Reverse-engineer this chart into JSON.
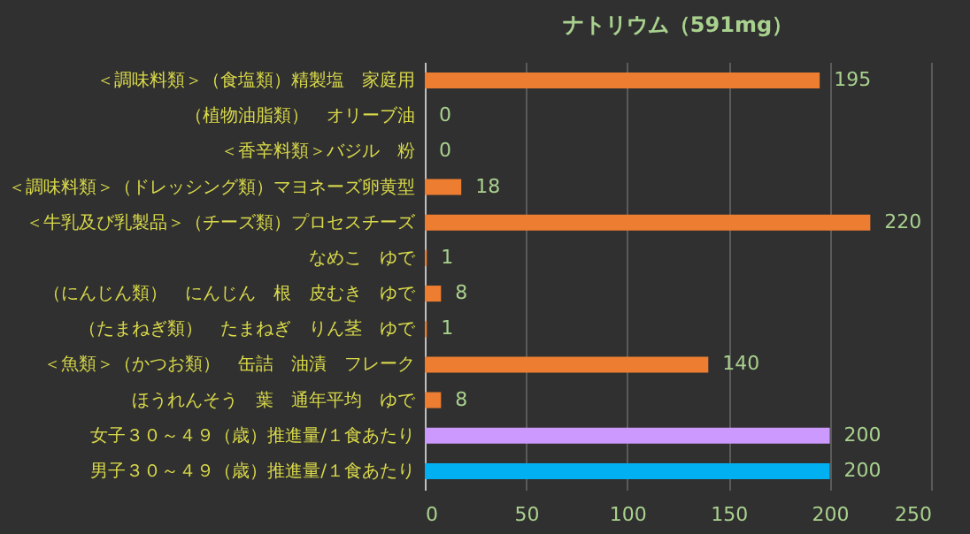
{
  "chart_data": {
    "type": "bar",
    "orientation": "horizontal",
    "title": "ナトリウム（591mg）",
    "categories": [
      "＜調味料類＞（食塩類）精製塩　家庭用",
      "（植物油脂類）　オリーブ油",
      "＜香辛料類＞バジル　粉",
      "＜調味料類＞（ドレッシング類）マヨネーズ卵黄型",
      "＜牛乳及び乳製品＞（チーズ類）プロセスチーズ",
      "なめこ　ゆで",
      "（にんじん類）　にんじん　根　皮むき　ゆで",
      "（たまねぎ類）　たまねぎ　りん茎　ゆで",
      "＜魚類＞（かつお類）　缶詰　油漬　フレーク",
      "ほうれんそう　葉　通年平均　ゆで",
      "女子３０～４９（歳）推進量/１食あたり",
      "男子３０～４９（歳）推進量/１食あたり"
    ],
    "values": [
      195,
      0,
      0,
      18,
      220,
      1,
      8,
      1,
      140,
      8,
      200,
      200
    ],
    "colors": [
      "#ed7d31",
      "#ed7d31",
      "#ed7d31",
      "#ed7d31",
      "#ed7d31",
      "#ed7d31",
      "#ed7d31",
      "#ed7d31",
      "#ed7d31",
      "#ed7d31",
      "#cc99ff",
      "#00b0f0"
    ],
    "xlim": [
      0,
      250
    ],
    "xticks": [
      0,
      50,
      100,
      150,
      200,
      250
    ],
    "grid": "x",
    "data_labels": true
  }
}
